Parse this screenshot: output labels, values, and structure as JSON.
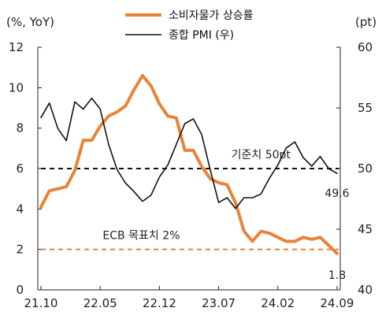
{
  "chart_data": {
    "type": "line",
    "left_axis": {
      "unit_label": "(%, YoY)",
      "range": [
        0,
        12
      ],
      "ticks": [
        "0",
        "2",
        "4",
        "6",
        "8",
        "10",
        "12"
      ]
    },
    "right_axis": {
      "unit_label": "(pt)",
      "range": [
        40,
        60
      ],
      "ticks": [
        "40",
        "45",
        "50",
        "55",
        "60"
      ]
    },
    "x_tick_labels": [
      "21.10",
      "22.05",
      "22.12",
      "23.07",
      "24.02",
      "24.09"
    ],
    "x_range": [
      0,
      35
    ],
    "x_tick_positions": [
      0,
      7,
      14,
      21,
      28,
      35
    ],
    "series": [
      {
        "name": "소비자물가 상승률",
        "axis": "left",
        "color": "#e8843a",
        "x": [
          0,
          1,
          2,
          3,
          4,
          5,
          6,
          7,
          8,
          9,
          10,
          11,
          12,
          13,
          14,
          15,
          16,
          17,
          18,
          19,
          20,
          21,
          22,
          23,
          24,
          25,
          26,
          27,
          28,
          29,
          30,
          31,
          32,
          33,
          34,
          35
        ],
        "values": [
          4.1,
          4.9,
          5.0,
          5.1,
          5.9,
          7.4,
          7.4,
          8.1,
          8.6,
          8.8,
          9.1,
          9.9,
          10.6,
          10.1,
          9.2,
          8.6,
          8.5,
          6.9,
          6.9,
          6.1,
          5.5,
          5.3,
          5.2,
          4.3,
          2.9,
          2.4,
          2.9,
          2.8,
          2.6,
          2.4,
          2.4,
          2.6,
          2.5,
          2.6,
          2.2,
          1.8
        ]
      },
      {
        "name": "종합 PMI (우)",
        "axis": "right",
        "color": "#111111",
        "x": [
          0,
          1,
          2,
          3,
          4,
          5,
          6,
          7,
          8,
          9,
          10,
          11,
          12,
          13,
          14,
          15,
          16,
          17,
          18,
          19,
          20,
          21,
          22,
          23,
          24,
          25,
          26,
          27,
          28,
          29,
          30,
          31,
          32,
          33,
          34,
          35
        ],
        "values": [
          54.2,
          55.4,
          53.3,
          52.3,
          55.5,
          54.9,
          55.8,
          54.9,
          52.0,
          49.9,
          48.8,
          48.1,
          47.3,
          47.8,
          49.3,
          50.3,
          52.0,
          53.7,
          54.1,
          52.8,
          49.9,
          47.2,
          47.6,
          46.7,
          47.6,
          47.6,
          47.9,
          49.2,
          50.3,
          51.7,
          52.2,
          50.9,
          50.2,
          51.0,
          50.0,
          49.6
        ]
      }
    ],
    "reference_lines": [
      {
        "axis": "right",
        "value": 50,
        "color": "#111111",
        "label": "기준치 50pt"
      },
      {
        "axis": "left",
        "value": 2,
        "color": "#e8843a",
        "label": "ECB 목표치 2%"
      }
    ],
    "end_labels": [
      {
        "series": 1,
        "text": "49.6"
      },
      {
        "series": 0,
        "text": "1.8"
      }
    ],
    "legend": {
      "placement": "top-center",
      "entries": [
        "소비자물가 상승률",
        "종합 PMI (우)"
      ]
    },
    "grid": false
  }
}
